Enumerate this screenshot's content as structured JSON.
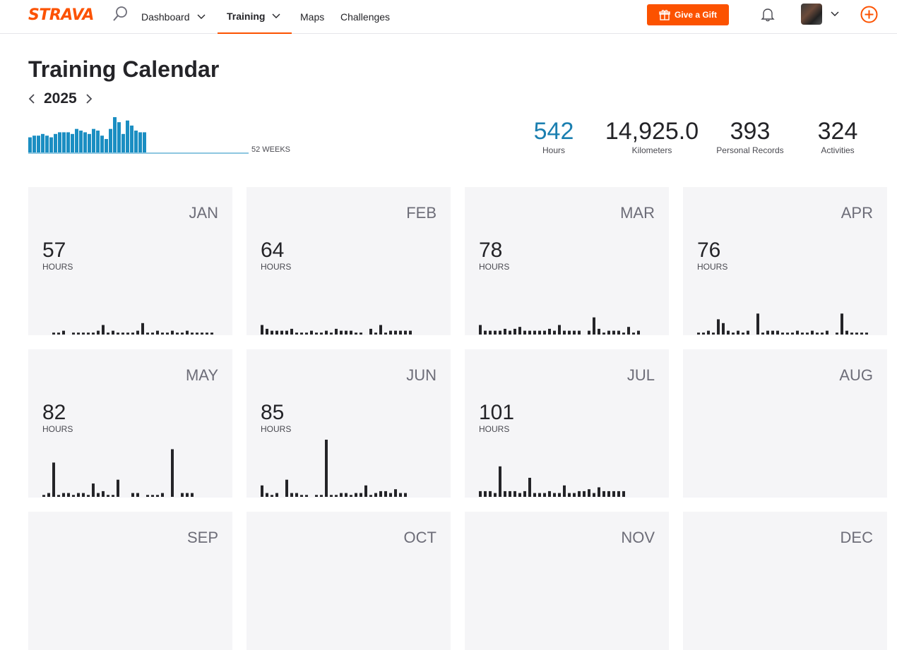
{
  "nav": {
    "logo": "STRAVA",
    "dashboard": "Dashboard",
    "training": "Training",
    "maps": "Maps",
    "challenges": "Challenges",
    "gift_label": "Give a Gift"
  },
  "page": {
    "title": "Training Calendar",
    "year": "2025",
    "weeks_label": "52 WEEKS"
  },
  "stats": {
    "hours": {
      "value": "542",
      "label": "Hours"
    },
    "km": {
      "value": "14,925.0",
      "label": "Kilometers"
    },
    "prs": {
      "value": "393",
      "label": "Personal Records"
    },
    "activities": {
      "value": "324",
      "label": "Activities"
    }
  },
  "colors": {
    "accent": "#fc5200",
    "weekly_bar": "#1b8ec2",
    "daily_bar": "#242428"
  },
  "weekly_hours": [
    9,
    10,
    10,
    11,
    10,
    9,
    11,
    12,
    12,
    12,
    11,
    14,
    13,
    12,
    11,
    14,
    13,
    10,
    8,
    14,
    21,
    18,
    11,
    19,
    16,
    13,
    12,
    12
  ],
  "months": [
    {
      "name": "JAN",
      "hours": "57",
      "label": "HOURS",
      "daily": [
        0,
        0,
        1,
        1,
        2,
        0,
        1,
        1,
        1,
        1,
        1,
        2,
        5,
        1,
        2,
        1,
        1,
        1,
        1,
        2,
        6,
        1,
        1,
        2,
        1,
        1,
        2,
        1,
        1,
        2,
        1,
        1,
        1,
        1,
        1
      ]
    },
    {
      "name": "FEB",
      "hours": "64",
      "label": "HOURS",
      "daily": [
        5,
        3,
        2,
        2,
        2,
        2,
        3,
        1,
        1,
        1,
        2,
        1,
        1,
        2,
        1,
        3,
        2,
        2,
        2,
        1,
        1,
        0,
        3,
        1,
        5,
        1,
        2,
        2,
        2,
        2,
        2
      ]
    },
    {
      "name": "MAR",
      "hours": "78",
      "label": "HOURS",
      "daily": [
        5,
        2,
        2,
        2,
        2,
        3,
        2,
        3,
        4,
        2,
        2,
        2,
        2,
        2,
        3,
        2,
        5,
        2,
        2,
        2,
        2,
        0,
        2,
        9,
        3,
        1,
        2,
        2,
        2,
        1,
        4,
        1,
        2
      ]
    },
    {
      "name": "APR",
      "hours": "76",
      "label": "HOURS",
      "daily": [
        1,
        1,
        2,
        1,
        8,
        6,
        2,
        1,
        2,
        1,
        2,
        0,
        11,
        1,
        2,
        2,
        2,
        1,
        1,
        1,
        2,
        1,
        1,
        2,
        1,
        1,
        2,
        0,
        1,
        11,
        2,
        1,
        1,
        1,
        1
      ]
    },
    {
      "name": "MAY",
      "hours": "82",
      "label": "HOURS",
      "daily": [
        1,
        2,
        18,
        1,
        2,
        2,
        1,
        2,
        2,
        1,
        7,
        2,
        3,
        1,
        1,
        9,
        0,
        0,
        2,
        2,
        0,
        1,
        1,
        1,
        2,
        0,
        25,
        0,
        2,
        2,
        2
      ]
    },
    {
      "name": "JUN",
      "hours": "85",
      "label": "HOURS",
      "daily": [
        6,
        2,
        1,
        2,
        0,
        9,
        2,
        2,
        1,
        1,
        0,
        1,
        1,
        30,
        1,
        1,
        2,
        2,
        1,
        2,
        2,
        6,
        1,
        2,
        3,
        3,
        2,
        4,
        2,
        2
      ]
    },
    {
      "name": "JUL",
      "hours": "101",
      "label": "HOURS",
      "daily": [
        3,
        3,
        3,
        2,
        16,
        3,
        3,
        3,
        2,
        3,
        10,
        2,
        2,
        2,
        3,
        2,
        2,
        6,
        2,
        2,
        3,
        3,
        4,
        2,
        5,
        3,
        3,
        3,
        3,
        3
      ]
    },
    {
      "name": "AUG",
      "hours": "",
      "label": "",
      "daily": []
    },
    {
      "name": "SEP",
      "hours": "",
      "label": "",
      "daily": []
    },
    {
      "name": "OCT",
      "hours": "",
      "label": "",
      "daily": []
    },
    {
      "name": "NOV",
      "hours": "",
      "label": "",
      "daily": []
    },
    {
      "name": "DEC",
      "hours": "",
      "label": "",
      "daily": []
    }
  ]
}
